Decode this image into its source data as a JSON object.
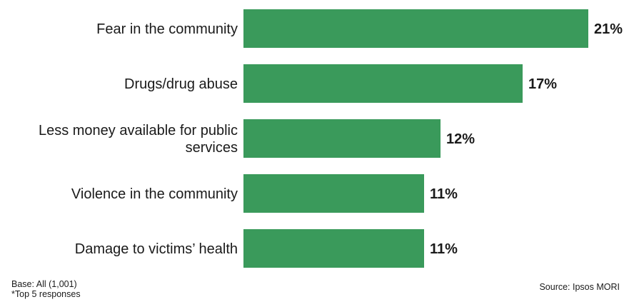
{
  "chart_data": {
    "type": "bar",
    "orientation": "horizontal",
    "categories": [
      [
        "Fear in the community"
      ],
      [
        "Drugs/drug abuse"
      ],
      [
        "Less money available for public",
        "services"
      ],
      [
        "Violence in the community"
      ],
      [
        "Damage to victims’ health"
      ]
    ],
    "values": [
      21,
      17,
      12,
      11,
      11
    ],
    "value_labels": [
      "21%",
      "17%",
      "12%",
      "11%",
      "11%"
    ],
    "unit": "%",
    "xlim": [
      0,
      21
    ],
    "grid": false,
    "legend": "none",
    "bar_color": "#3a9a5b"
  },
  "footer": {
    "base": "Base: All (1,001)",
    "note": "*Top 5 responses",
    "source": "Source: Ipsos MORI"
  }
}
